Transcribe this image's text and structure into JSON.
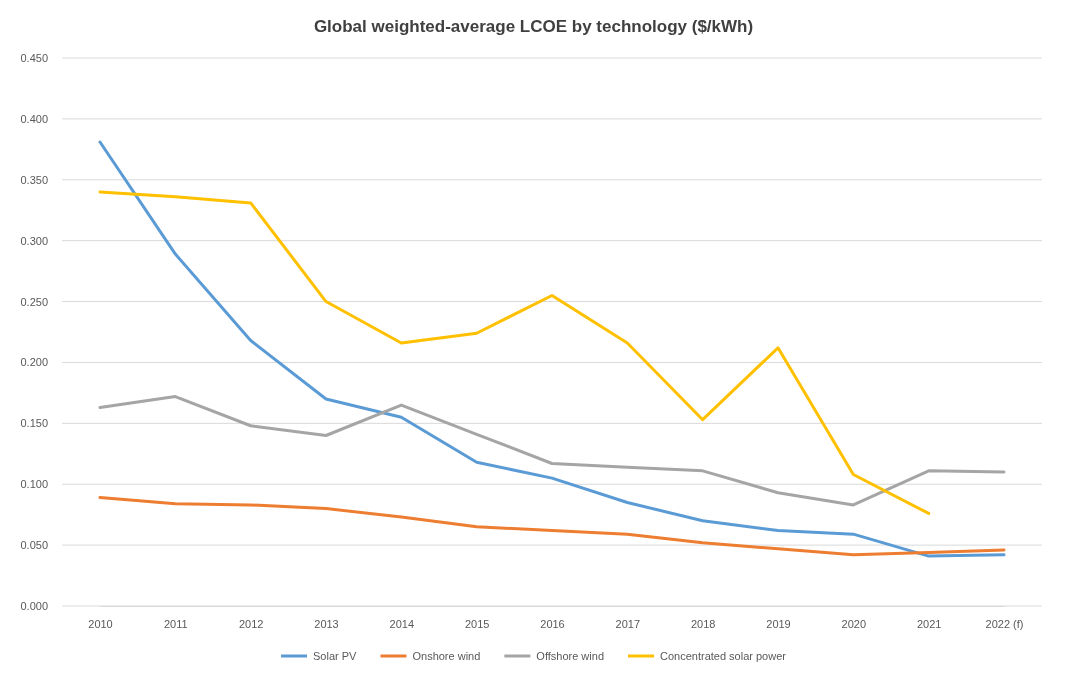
{
  "chart_data": {
    "type": "line",
    "title": "Global weighted-average LCOE by technology ($/kWh)",
    "categories": [
      "2010",
      "2011",
      "2012",
      "2013",
      "2014",
      "2015",
      "2016",
      "2017",
      "2018",
      "2019",
      "2020",
      "2021",
      "2022 (f)"
    ],
    "series": [
      {
        "name": "Solar PV",
        "color": "#5b9bd5",
        "values": [
          0.381,
          0.289,
          0.218,
          0.17,
          0.155,
          0.118,
          0.105,
          0.085,
          0.07,
          0.062,
          0.059,
          0.041,
          0.042
        ]
      },
      {
        "name": "Onshore wind",
        "color": "#ed7d31",
        "values": [
          0.089,
          0.084,
          0.083,
          0.08,
          0.073,
          0.065,
          0.062,
          0.059,
          0.052,
          0.047,
          0.042,
          0.044,
          0.046
        ]
      },
      {
        "name": "Offshore wind",
        "color": "#a5a5a5",
        "values": [
          0.163,
          0.172,
          0.148,
          0.14,
          0.165,
          0.141,
          0.117,
          0.114,
          0.111,
          0.093,
          0.083,
          0.111,
          0.11
        ]
      },
      {
        "name": "Concentrated solar power",
        "color": "#ffc000",
        "values": [
          0.34,
          0.336,
          0.331,
          0.25,
          0.216,
          0.224,
          0.255,
          0.216,
          0.153,
          0.212,
          0.108,
          0.076,
          null
        ]
      }
    ],
    "ylim": [
      0,
      0.45
    ],
    "yticks": [
      {
        "value": 0,
        "label": "0.000"
      },
      {
        "value": 0.05,
        "label": "0.050"
      },
      {
        "value": 0.1,
        "label": "0.100"
      },
      {
        "value": 0.15,
        "label": "0.150"
      },
      {
        "value": 0.2,
        "label": "0.200"
      },
      {
        "value": 0.25,
        "label": "0.250"
      },
      {
        "value": 0.3,
        "label": "0.300"
      },
      {
        "value": 0.35,
        "label": "0.350"
      },
      {
        "value": 0.4,
        "label": "0.400"
      },
      {
        "value": 0.45,
        "label": "0.450"
      }
    ],
    "grid": "y",
    "legend": "bottom",
    "marker": "none",
    "line_style": "solid"
  }
}
